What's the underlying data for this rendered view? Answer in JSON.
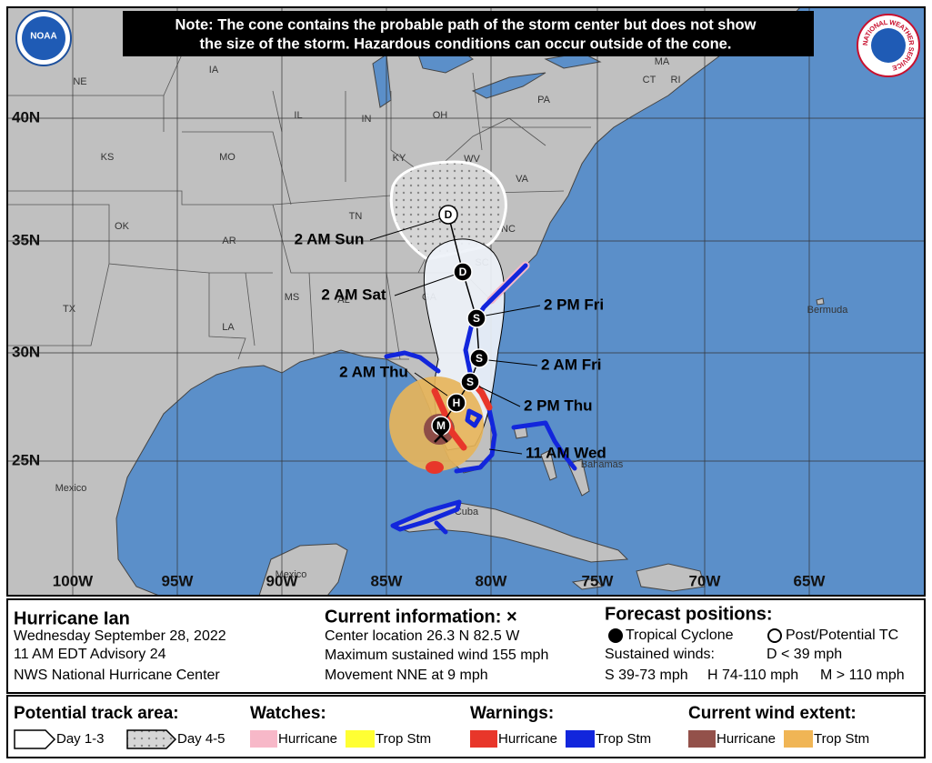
{
  "header": {
    "note": [
      "Note: The cone contains the probable path of the storm center but does not show",
      "the size of the storm. Hazardous conditions can occur outside of the cone."
    ],
    "noaa_logo": "NOAA",
    "nws_logo": "NATIONAL WEATHER SERVICE"
  },
  "map": {
    "latitude_labels": [
      "40N",
      "35N",
      "30N",
      "25N"
    ],
    "longitude_labels": [
      "100W",
      "95W",
      "90W",
      "85W",
      "80W",
      "75W",
      "70W",
      "65W"
    ],
    "place_labels": [
      "NE",
      "IA",
      "IL",
      "IN",
      "OH",
      "PA",
      "MA",
      "CT",
      "RI",
      "KS",
      "MO",
      "KY",
      "WV",
      "VA",
      "OK",
      "AR",
      "TN",
      "NC",
      "SC",
      "GA",
      "AL",
      "MS",
      "LA",
      "TX",
      "Mexico",
      "Cuba",
      "Bahamas",
      "Bermuda",
      "Mexico"
    ],
    "forecast_points": [
      {
        "time": "11 AM Wed",
        "symbol": "M"
      },
      {
        "time": "2 AM Thu",
        "symbol": "H"
      },
      {
        "time": "2 PM Thu",
        "symbol": "S"
      },
      {
        "time": "2 AM Fri",
        "symbol": "S"
      },
      {
        "time": "2 PM Fri",
        "symbol": "S"
      },
      {
        "time": "2 AM Sat",
        "symbol": "D"
      },
      {
        "time": "2 AM Sun",
        "symbol": "D"
      }
    ]
  },
  "info": {
    "storm": {
      "title": "Hurricane Ian",
      "lines": [
        "Wednesday September 28, 2022",
        "11 AM EDT Advisory 24",
        "NWS National Hurricane Center"
      ]
    },
    "current": {
      "title": "Current information: ×",
      "lines": [
        "Center location 26.3 N 82.5 W",
        "Maximum sustained wind 155 mph",
        "Movement NNE at 9 mph"
      ]
    },
    "forecast": {
      "title": "Forecast positions:",
      "tropical_cyclone": "Tropical Cyclone",
      "post_potential": "Post/Potential TC",
      "sustained_winds": "Sustained winds:",
      "d": "D < 39 mph",
      "s": "S 39-73 mph",
      "h": "H 74-110 mph",
      "m": "M > 110 mph"
    }
  },
  "legend": {
    "track": {
      "title": "Potential track area:",
      "day13": "Day 1-3",
      "day45": "Day 4-5"
    },
    "watches": {
      "title": "Watches:",
      "hurricane": "Hurricane",
      "trop_stm": "Trop Stm"
    },
    "warnings": {
      "title": "Warnings:",
      "hurricane": "Hurricane",
      "trop_stm": "Trop Stm"
    },
    "wind": {
      "title": "Current wind extent:",
      "hurricane": "Hurricane",
      "trop_stm": "Trop Stm"
    }
  }
}
